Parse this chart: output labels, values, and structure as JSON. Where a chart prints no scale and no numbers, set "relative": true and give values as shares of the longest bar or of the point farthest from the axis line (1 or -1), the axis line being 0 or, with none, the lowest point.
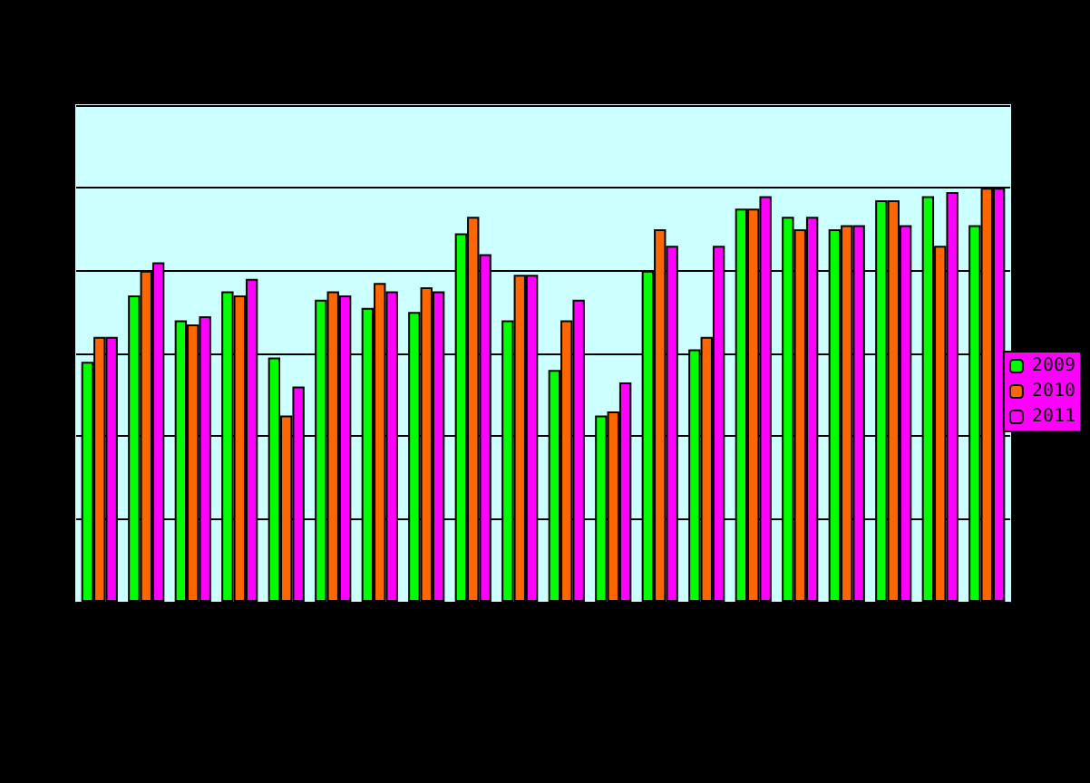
{
  "chart_data": {
    "type": "bar",
    "relative": true,
    "grid": "y",
    "legend": "right",
    "categories": [
      null,
      null,
      null,
      null,
      null,
      null,
      null,
      null,
      null,
      null,
      null,
      null,
      null,
      null,
      null,
      null,
      null,
      null,
      null,
      null
    ],
    "series": [
      {
        "name": "2009",
        "color": "#00ff00",
        "values": [
          0.58,
          0.74,
          0.68,
          0.75,
          0.59,
          0.73,
          0.71,
          0.7,
          0.89,
          0.68,
          0.56,
          0.45,
          0.8,
          0.61,
          0.95,
          0.93,
          0.9,
          0.97,
          0.98,
          0.91
        ]
      },
      {
        "name": "2010",
        "color": "#ff6600",
        "values": [
          0.64,
          0.8,
          0.67,
          0.74,
          0.45,
          0.75,
          0.77,
          0.76,
          0.93,
          0.79,
          0.68,
          0.46,
          0.9,
          0.64,
          0.95,
          0.9,
          0.91,
          0.97,
          0.86,
          1
        ]
      },
      {
        "name": "2011",
        "color": "#ff00ff",
        "values": [
          0.64,
          0.82,
          0.69,
          0.78,
          0.52,
          0.74,
          0.75,
          0.75,
          0.84,
          0.79,
          0.73,
          0.53,
          0.86,
          0.86,
          0.98,
          0.93,
          0.91,
          0.91,
          0.99,
          1
        ]
      }
    ]
  }
}
